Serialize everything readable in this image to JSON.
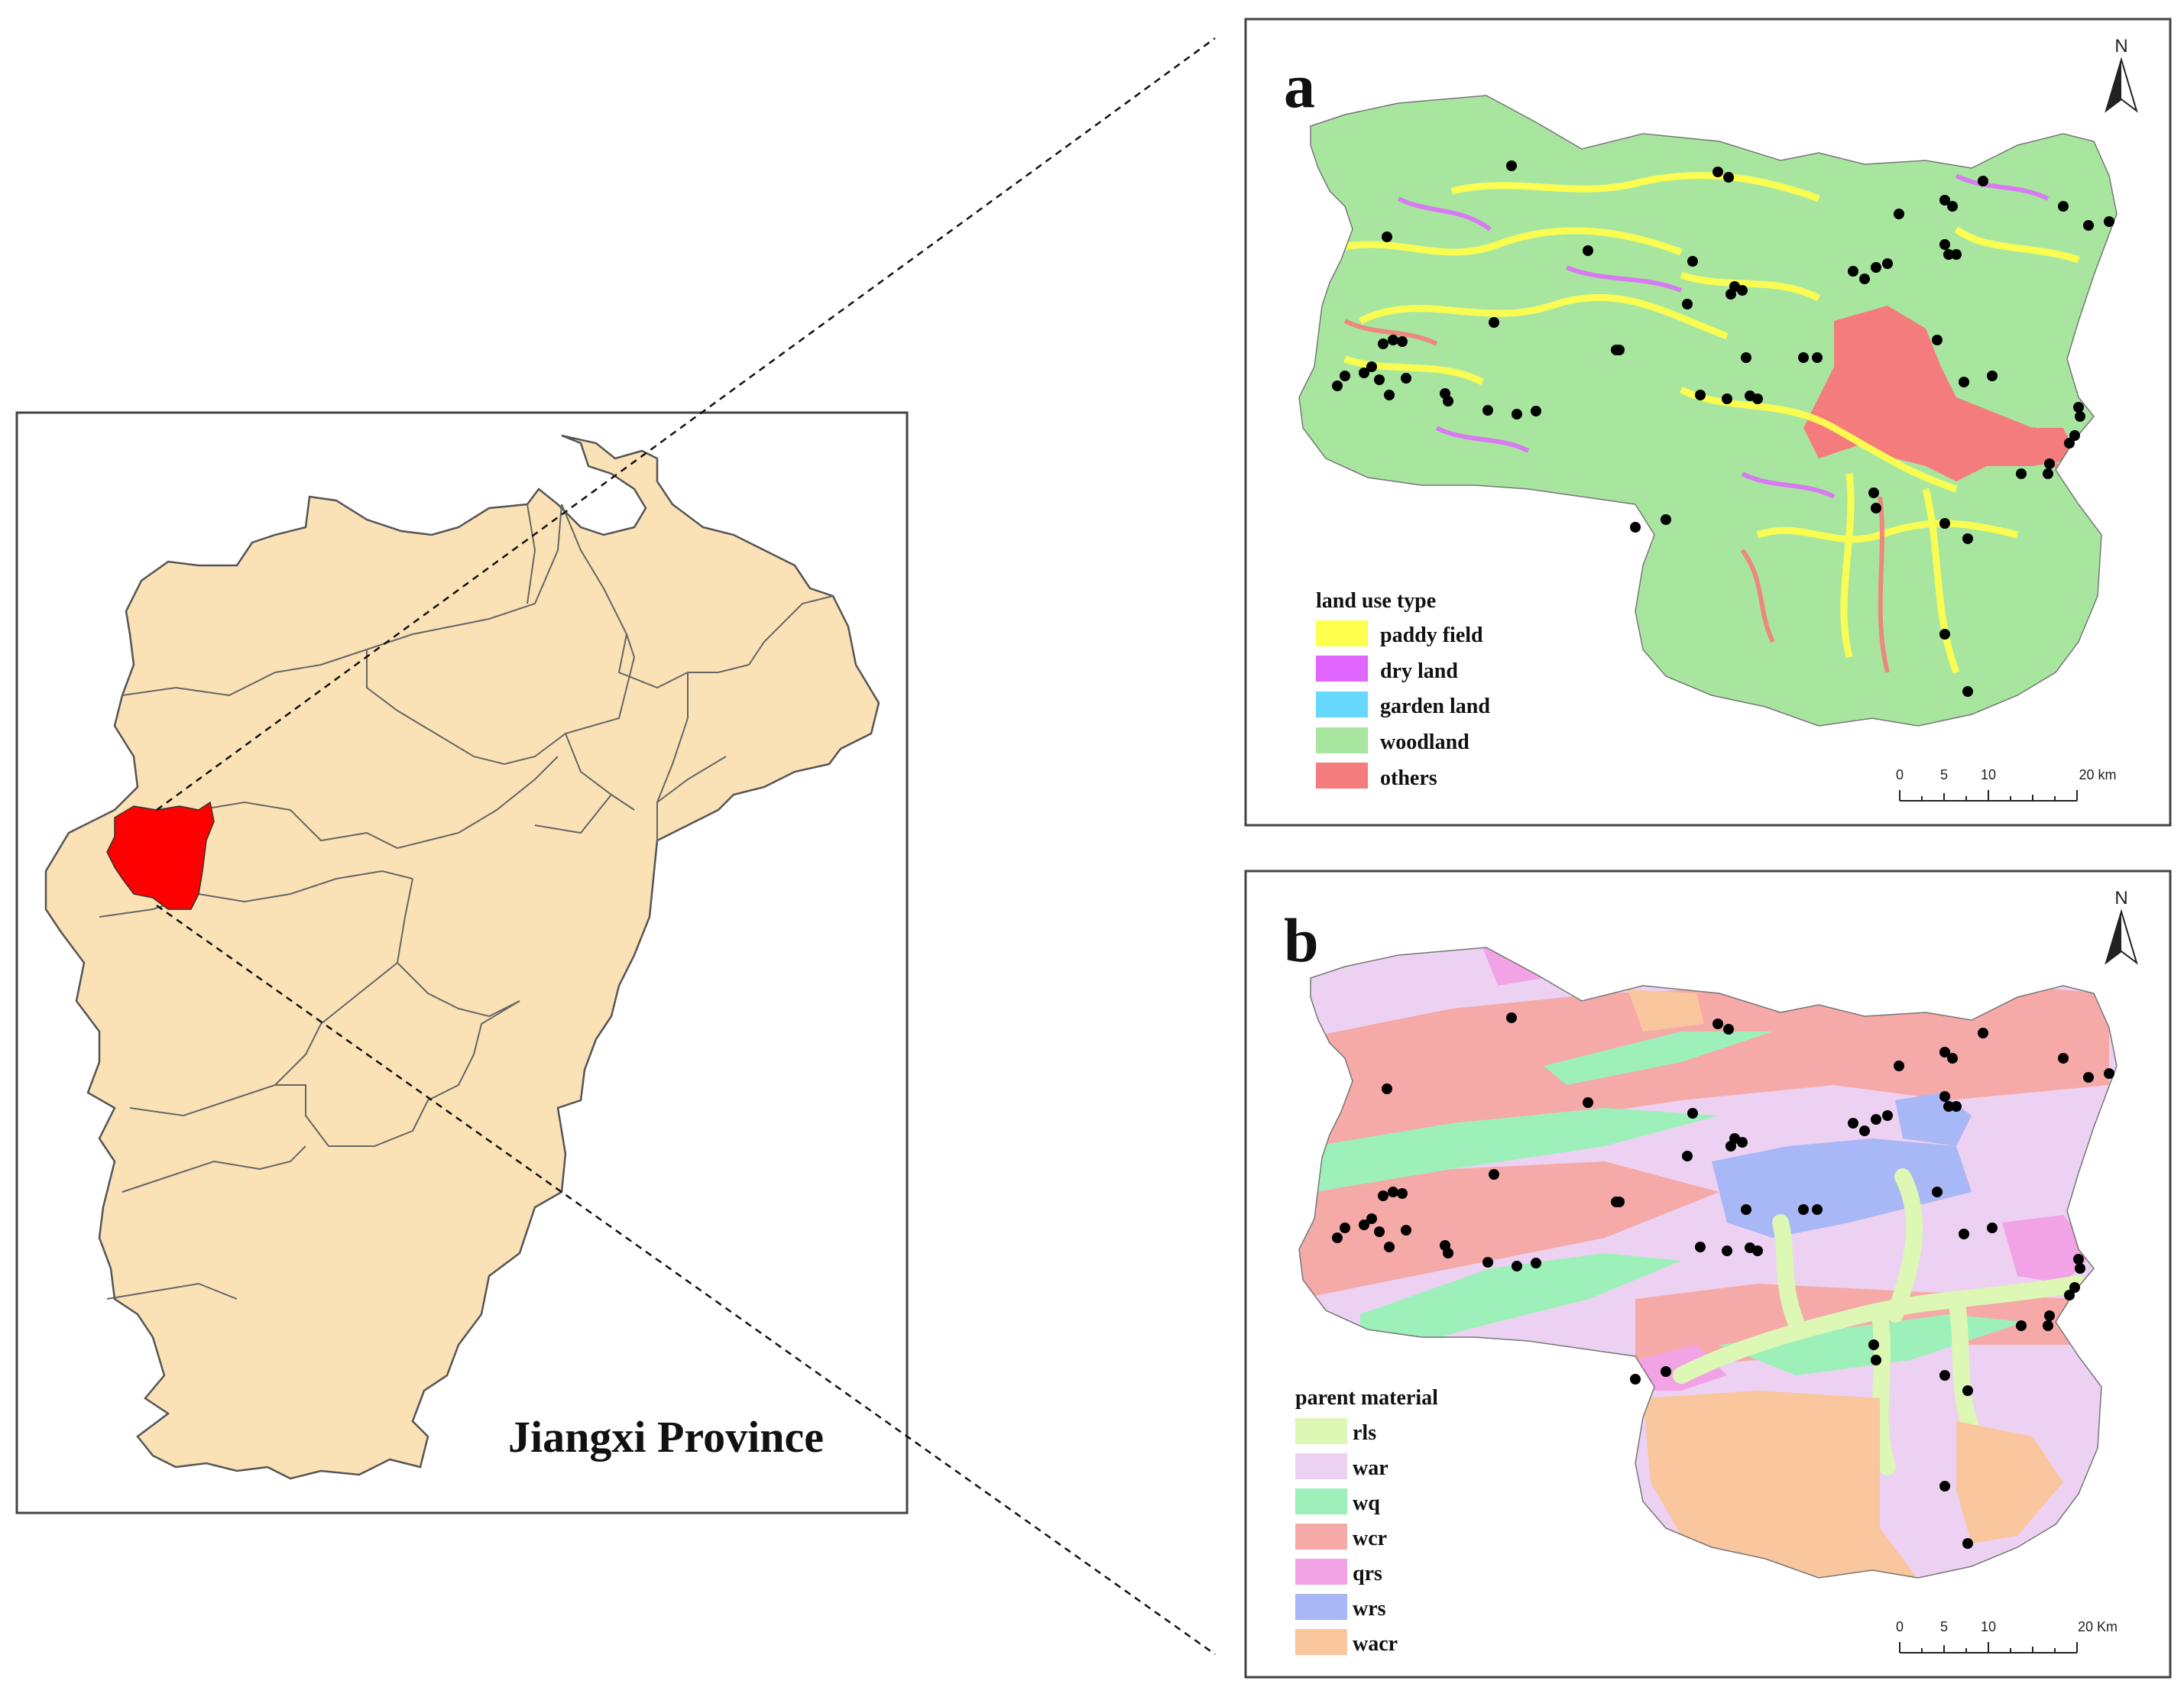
{
  "overview": {
    "title": "Jiangxi Province",
    "province_fill": "#fbe1b6",
    "highlight_fill": "#ff0000",
    "boundary_color": "#555555"
  },
  "panel_a": {
    "letter": "a",
    "north_label": "N",
    "legend_title": "land use type",
    "legend": [
      {
        "label": "paddy field",
        "color": "#ffff4d"
      },
      {
        "label": "dry land",
        "color": "#e066ff"
      },
      {
        "label": "garden land",
        "color": "#66d9ff"
      },
      {
        "label": "woodland",
        "color": "#a8e6a0"
      },
      {
        "label": "others",
        "color": "#f47c7c"
      }
    ],
    "scale_labels": [
      "0",
      "5",
      "10",
      "20 km"
    ]
  },
  "panel_b": {
    "letter": "b",
    "north_label": "N",
    "legend_title": "parent material",
    "legend": [
      {
        "label": "rls",
        "color": "#ddf7b5"
      },
      {
        "label": "war",
        "color": "#edd1f2"
      },
      {
        "label": "wq",
        "color": "#9ef0bb"
      },
      {
        "label": "wcr",
        "color": "#f5aaa8"
      },
      {
        "label": "qrs",
        "color": "#f2a3e6"
      },
      {
        "label": "wrs",
        "color": "#a8b7f5"
      },
      {
        "label": "wacr",
        "color": "#f9c69e"
      }
    ],
    "scale_labels": [
      "0",
      "5",
      "10",
      "20 Km"
    ]
  },
  "sample_points": {
    "color": "#000000",
    "count": 64
  }
}
